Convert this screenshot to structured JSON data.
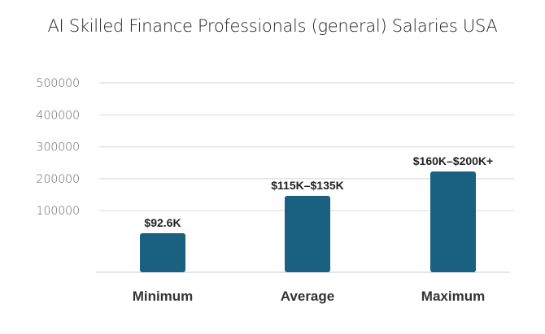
{
  "chart_data": {
    "type": "bar",
    "title": "AI Skilled Finance Professionals (general) Salaries USA",
    "categories": [
      "Minimum",
      "Average",
      "Maximum"
    ],
    "values": [
      92600,
      125000,
      180000
    ],
    "data_labels": [
      "$92.6K",
      "$115K–$135K",
      "$160K–$200K+"
    ],
    "yticks": [
      "100000",
      "200000",
      "300000",
      "400000",
      "500000"
    ],
    "ylim": [
      0,
      500000
    ],
    "grid": true,
    "xlabel": "",
    "ylabel": "",
    "colors": {
      "bar": "#1a6080",
      "grid": "#dddddd",
      "tick": "#666666",
      "label": "#222222"
    }
  }
}
